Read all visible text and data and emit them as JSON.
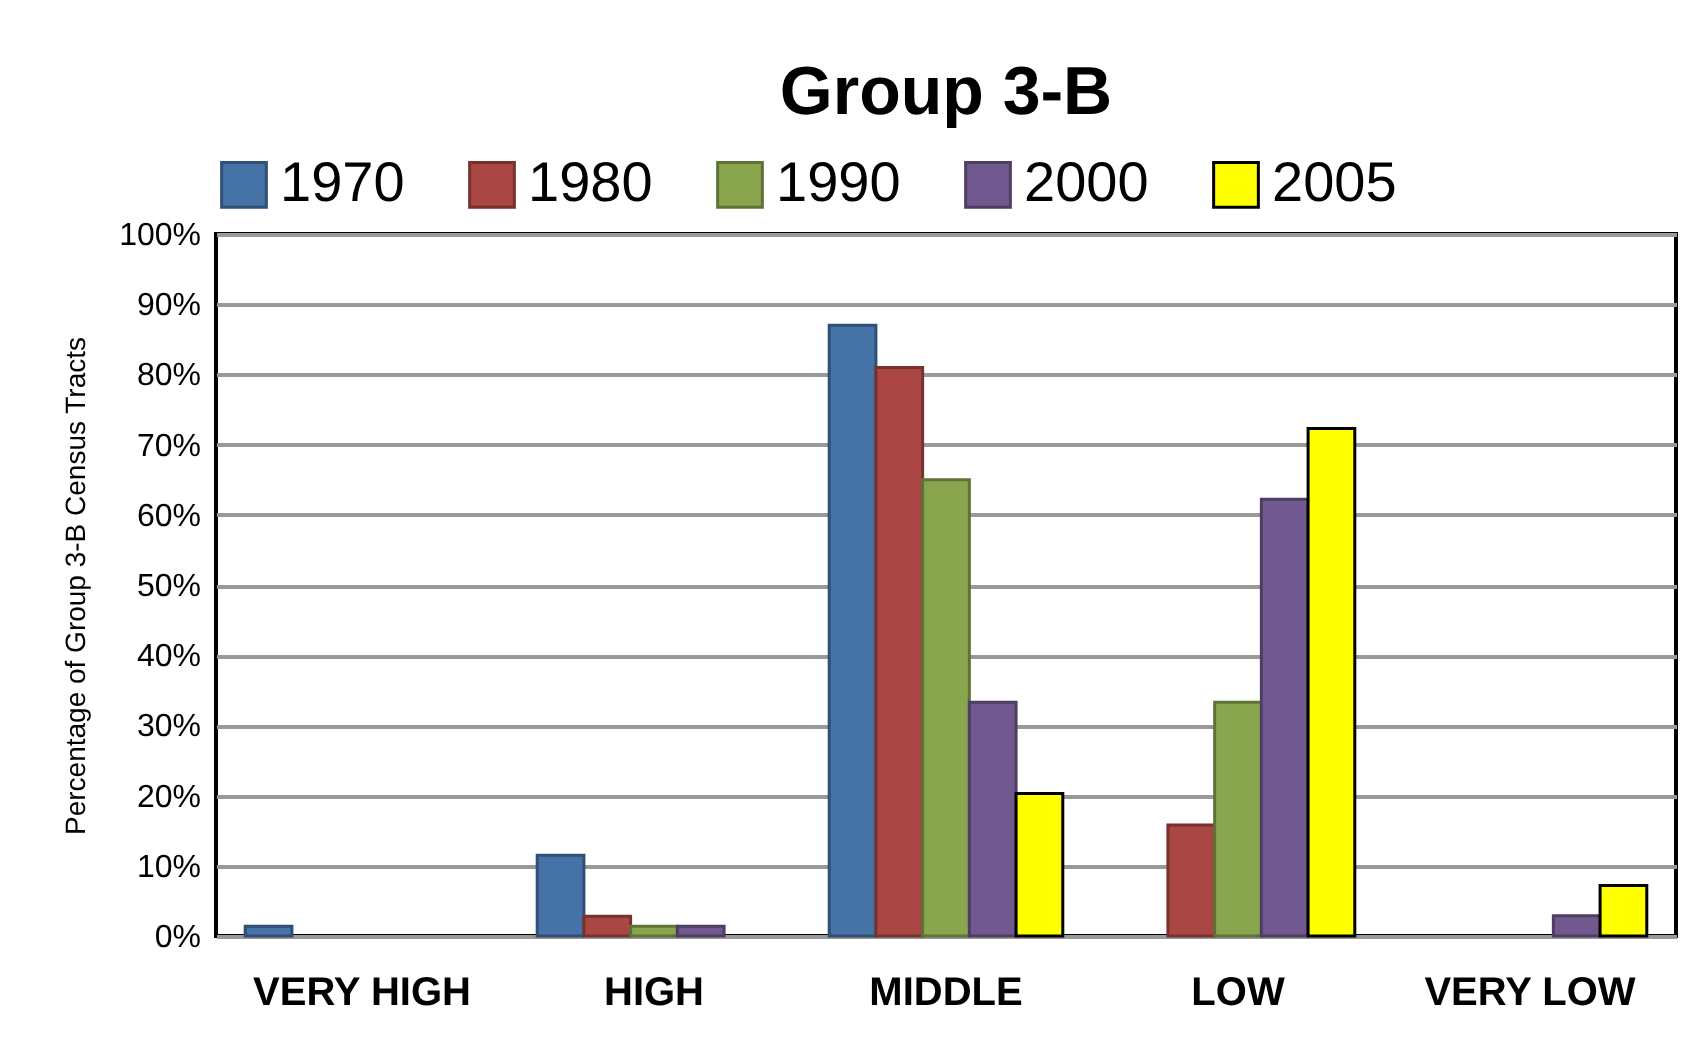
{
  "chart_data": {
    "type": "bar",
    "title": "Group 3-B",
    "ylabel": "Percentage of Group 3-B Census Tracts",
    "categories": [
      "VERY HIGH",
      "HIGH",
      "MIDDLE",
      "LOW",
      "VERY LOW"
    ],
    "series": [
      {
        "name": "1970",
        "color": "#4572a7",
        "values": [
          1.4,
          11.5,
          87,
          null,
          null
        ]
      },
      {
        "name": "1980",
        "color": "#aa4643",
        "values": [
          null,
          2.8,
          81,
          15.8,
          null
        ]
      },
      {
        "name": "1990",
        "color": "#89a54e",
        "values": [
          null,
          1.4,
          65,
          33.3,
          null
        ]
      },
      {
        "name": "2000",
        "color": "#71588f",
        "values": [
          null,
          1.4,
          33.3,
          62.2,
          2.9
        ]
      },
      {
        "name": "2005",
        "color": "#ffff00",
        "values": [
          null,
          null,
          20.3,
          72.3,
          7.2
        ]
      }
    ],
    "ylim": [
      0,
      100
    ],
    "yticks": [
      {
        "value": 0,
        "label": "0%"
      },
      {
        "value": 10,
        "label": "10%"
      },
      {
        "value": 20,
        "label": "20%"
      },
      {
        "value": 30,
        "label": "30%"
      },
      {
        "value": 40,
        "label": "40%"
      },
      {
        "value": 50,
        "label": "50%"
      },
      {
        "value": 60,
        "label": "60%"
      },
      {
        "value": 70,
        "label": "70%"
      },
      {
        "value": 80,
        "label": "80%"
      },
      {
        "value": 90,
        "label": "90%"
      },
      {
        "value": 100,
        "label": "100%"
      }
    ],
    "grid": "y",
    "legend": "top"
  }
}
